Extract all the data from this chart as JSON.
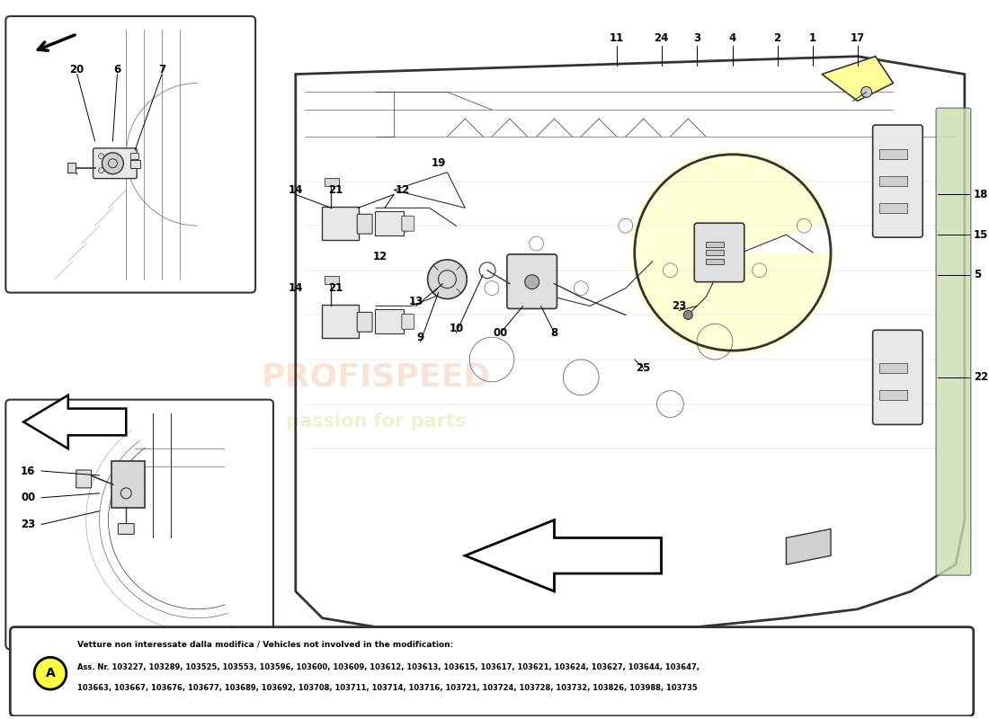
{
  "bg_color": "#ffffff",
  "note": {
    "title": "Vetture non interessate dalla modifica / Vehicles not involved in the modification:",
    "line1": "Ass. Nr. 103227, 103289, 103525, 103553, 103596, 103600, 103609, 103612, 103613, 103615, 103617, 103621, 103624, 103627, 103644, 103647,",
    "line2": "103663, 103667, 103676, 103677, 103689, 103692, 103708, 103711, 103714, 103716, 103721, 103724, 103728, 103732, 103826, 103988, 103735",
    "circle_label": "A",
    "circle_color": "#FFFF44"
  },
  "watermark1": "PROFISPEED",
  "watermark2": "passion for parts",
  "wm_color1": "#DD6622",
  "wm_color2": "#BBAA00"
}
